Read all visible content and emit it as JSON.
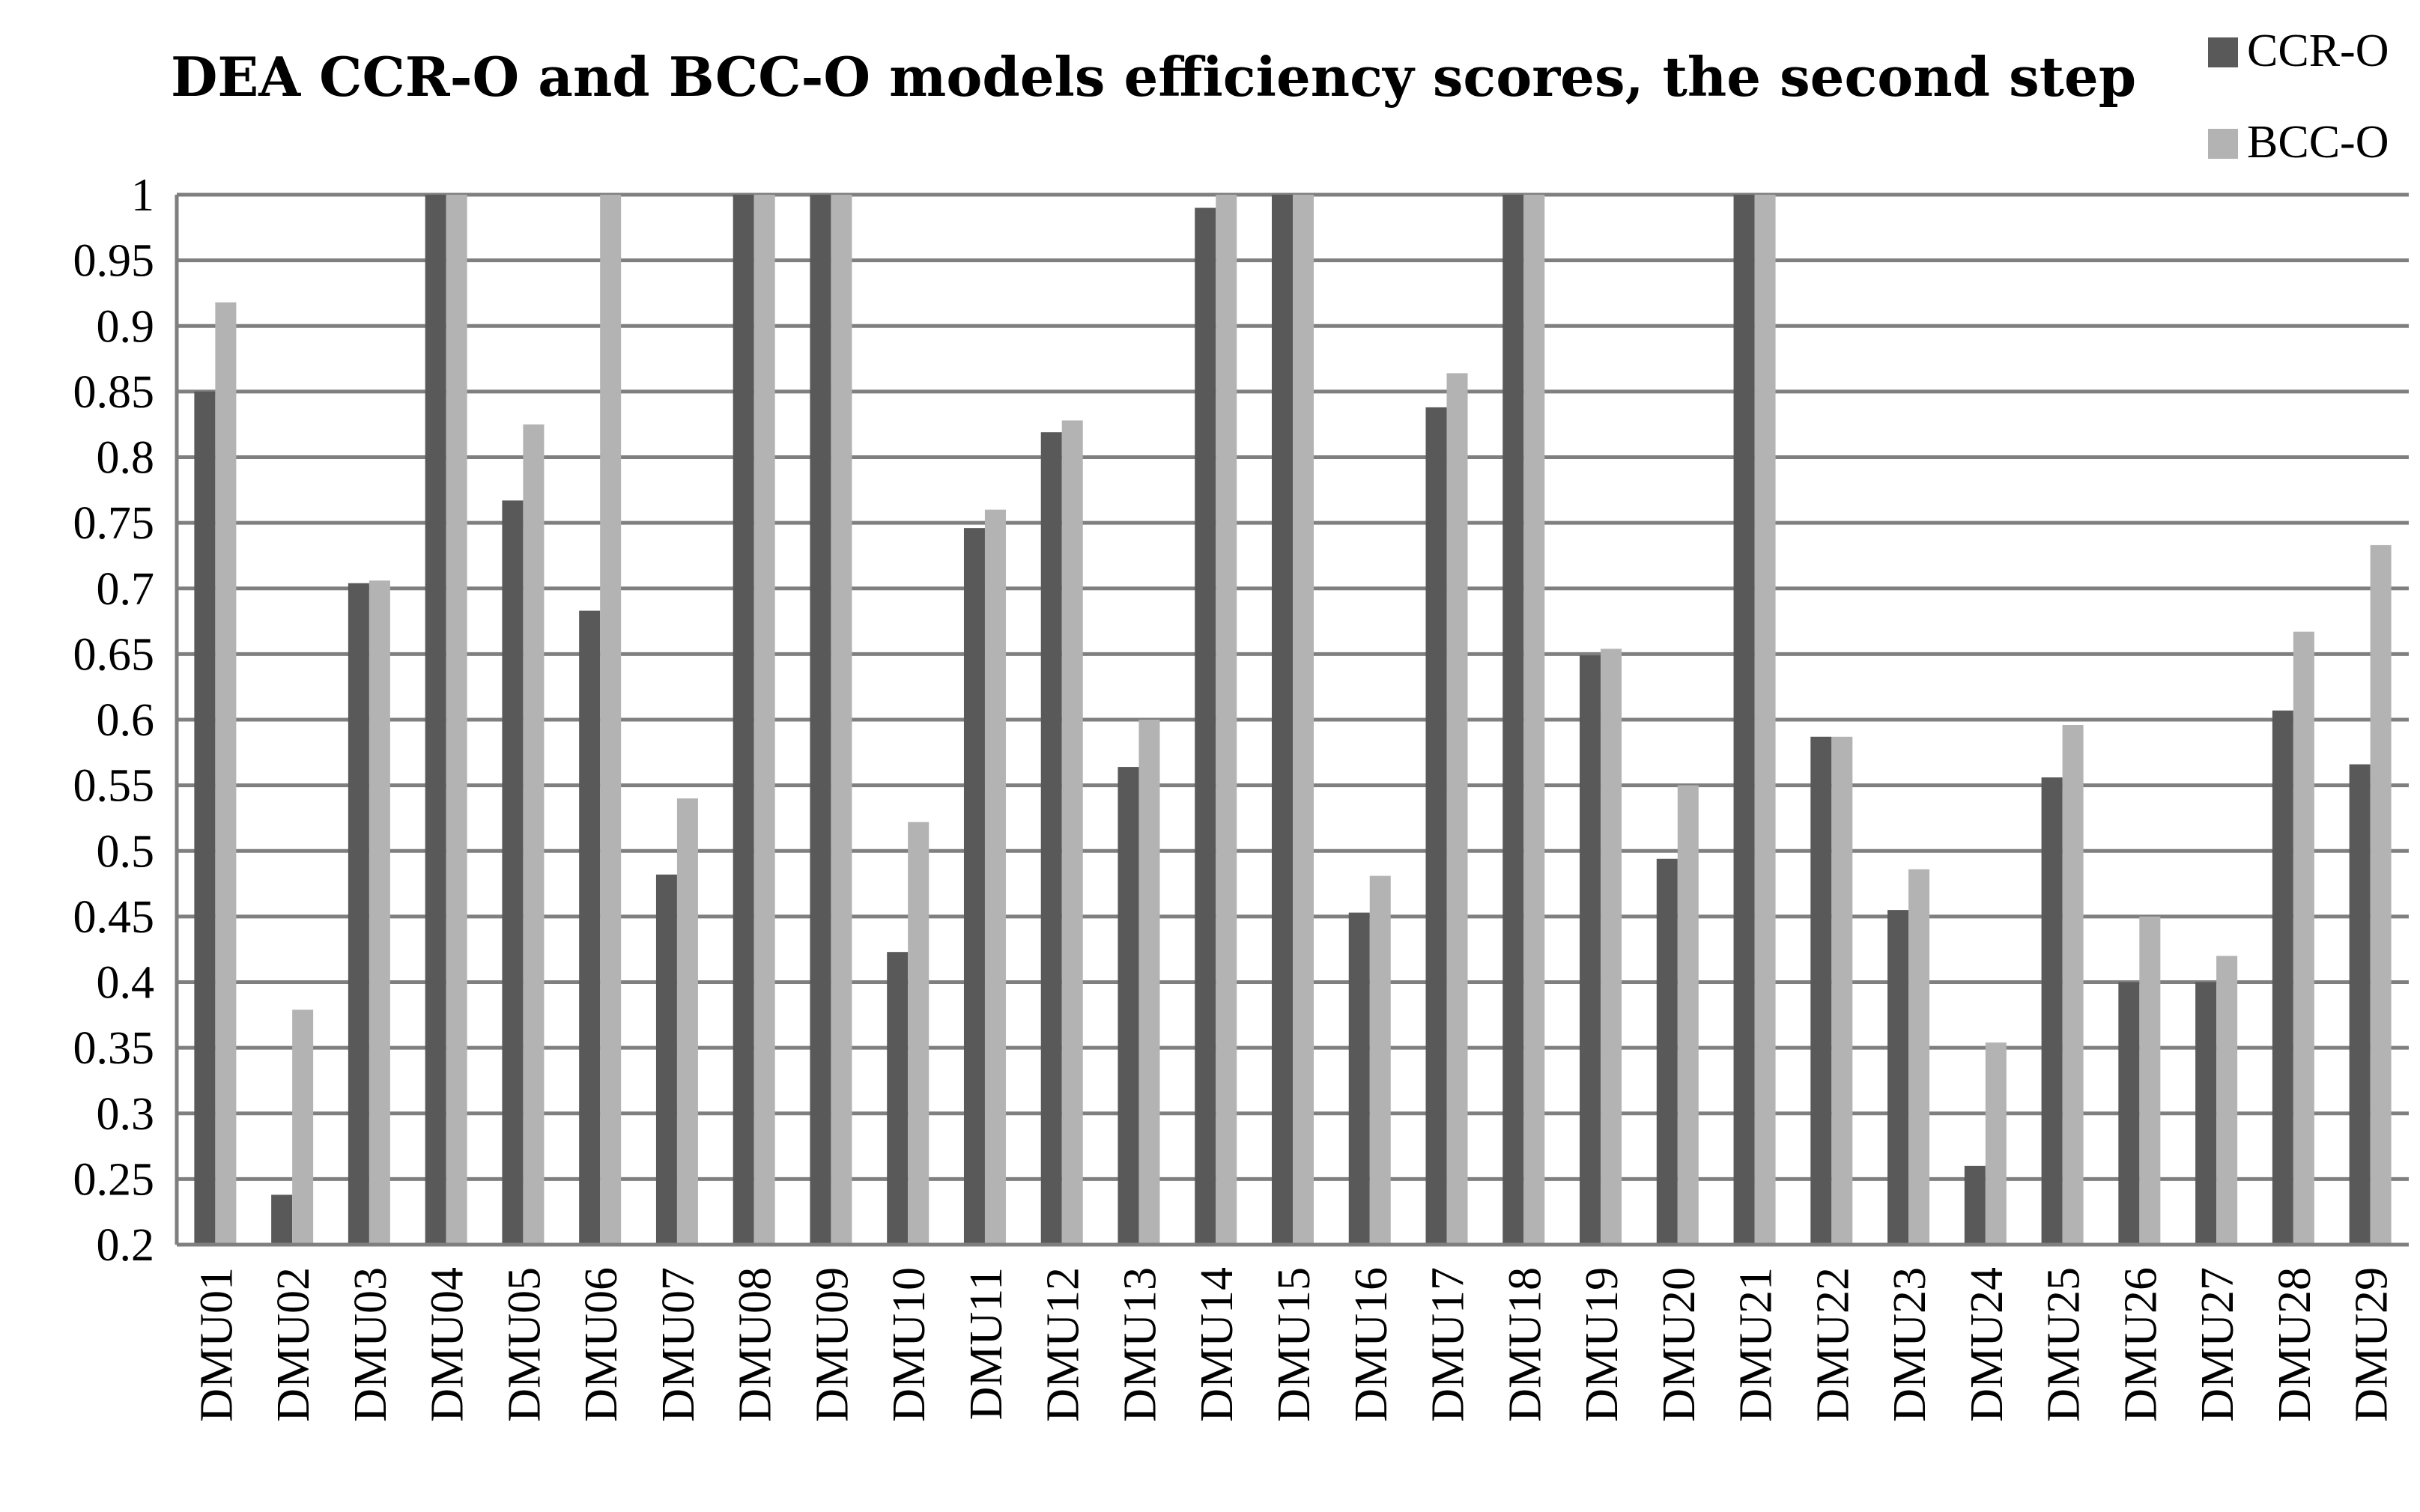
{
  "chart_data": {
    "type": "bar",
    "title": "DEA CCR-O and BCC-O models efficiency scores, the second step",
    "xlabel": "",
    "ylabel": "",
    "ylim": [
      0.2,
      1
    ],
    "yticks": [
      "0.2",
      "0.25",
      "0.3",
      "0.35",
      "0.4",
      "0.45",
      "0.5",
      "0.55",
      "0.6",
      "0.65",
      "0.7",
      "0.75",
      "0.8",
      "0.85",
      "0.9",
      "0.95",
      "1"
    ],
    "grid": true,
    "legend_position": "top-right",
    "categories": [
      "DMU01",
      "DMU02",
      "DMU03",
      "DMU04",
      "DMU05",
      "DMU06",
      "DMU07",
      "DMU08",
      "DMU09",
      "DMU10",
      "DMU11",
      "DMU12",
      "DMU13",
      "DMU14",
      "DMU15",
      "DMU16",
      "DMU17",
      "DMU18",
      "DMU19",
      "DMU20",
      "DMU21",
      "DMU22",
      "DMU23",
      "DMU24",
      "DMU25",
      "DMU26",
      "DMU27",
      "DMU28",
      "DMU29"
    ],
    "series": [
      {
        "name": "CCR-O",
        "color": "#595959",
        "values": [
          0.85,
          0.238,
          0.704,
          1,
          0.767,
          0.683,
          0.482,
          1,
          1,
          0.423,
          0.746,
          0.819,
          0.564,
          0.99,
          1,
          0.453,
          0.838,
          1,
          0.649,
          0.494,
          1,
          0.587,
          0.455,
          0.26,
          0.556,
          0.4,
          0.4,
          0.607,
          0.566
        ]
      },
      {
        "name": "BCC-O",
        "color": "#b3b3b3",
        "values": [
          0.918,
          0.379,
          0.706,
          1,
          0.825,
          1,
          0.54,
          1,
          1,
          0.522,
          0.76,
          0.828,
          0.6,
          1,
          1,
          0.481,
          0.864,
          1,
          0.654,
          0.55,
          1,
          0.587,
          0.486,
          0.354,
          0.596,
          0.45,
          0.42,
          0.667,
          0.733
        ]
      }
    ]
  }
}
